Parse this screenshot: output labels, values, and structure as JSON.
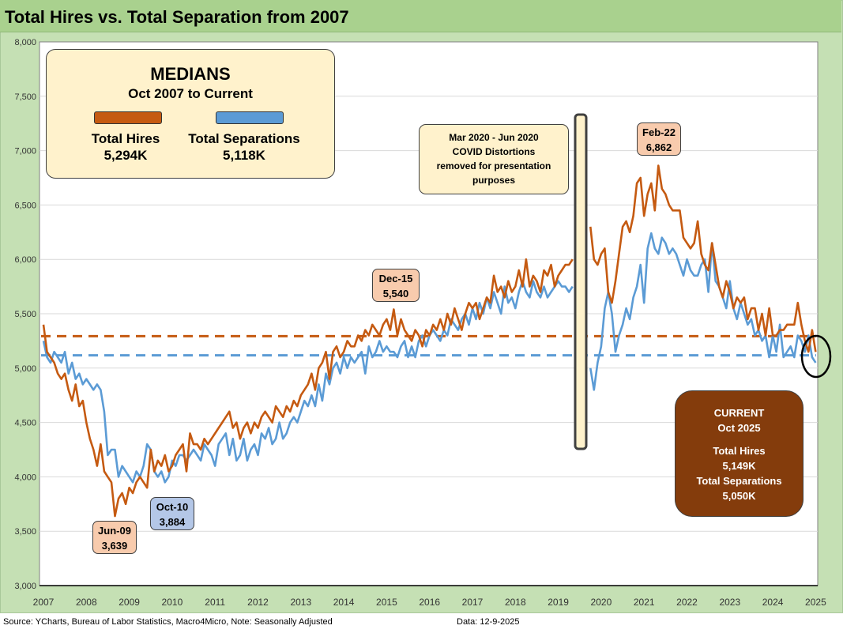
{
  "title": "Total Hires vs. Total Separation from 2007",
  "footer": {
    "source": "Source: YCharts, Bureau of Labor Statistics, Macro4Micro, Note: Seasonally Adjusted",
    "date": "Data: 12-9-2025"
  },
  "medians_box": {
    "heading": "MEDIANS",
    "period": "Oct 2007 to Current",
    "hires_label": "Total Hires",
    "hires_value": "5,294K",
    "seps_label": "Total Separations",
    "seps_value": "5,118K"
  },
  "covid_note": {
    "line1": "Mar 2020  - Jun 2020",
    "line2": "COVID Distortions",
    "line3": "removed for presentation",
    "line4": "purposes"
  },
  "callouts": {
    "jun09": {
      "date": "Jun-09",
      "value": "3,639"
    },
    "oct10": {
      "date": "Oct-10",
      "value": "3,884"
    },
    "dec15": {
      "date": "Dec-15",
      "value": "5,540"
    },
    "feb22": {
      "date": "Feb-22",
      "value": "6,862"
    }
  },
  "current_box": {
    "heading": "CURRENT",
    "period": "Oct 2025",
    "hires_label": "Total Hires",
    "hires_value": "5,149K",
    "seps_label": "Total Separations",
    "seps_value": "5,050K"
  },
  "colors": {
    "hires": "#c55a11",
    "separations": "#5b9bd5"
  },
  "chart_data": {
    "type": "line",
    "title": "Total Hires vs. Total Separation from 2007",
    "start_month": "2007-10",
    "frequency": "monthly",
    "ylim": [
      3000,
      8000
    ],
    "yticks": [
      3000,
      3500,
      4000,
      4500,
      5000,
      5500,
      6000,
      6500,
      7000,
      7500,
      8000
    ],
    "ytick_labels": [
      "3,000",
      "3,500",
      "4,000",
      "4,500",
      "5,000",
      "5,500",
      "6,000",
      "6,500",
      "7,000",
      "7,500",
      "8,000"
    ],
    "xtick_labels": [
      "2007",
      "2008",
      "2009",
      "2010",
      "2011",
      "2012",
      "2013",
      "2014",
      "2015",
      "2016",
      "2017",
      "2018",
      "2019",
      "2020",
      "2021",
      "2022",
      "2023",
      "2024",
      "2025"
    ],
    "grid": true,
    "series": [
      {
        "name": "Total Hires",
        "units": "K",
        "median": 5294,
        "values": [
          5400,
          5150,
          5100,
          5050,
          4950,
          4900,
          4950,
          4800,
          4700,
          4850,
          4650,
          4700,
          4500,
          4350,
          4250,
          4100,
          4300,
          4050,
          4000,
          3950,
          3639,
          3800,
          3850,
          3750,
          3900,
          3850,
          3950,
          4000,
          3950,
          3900,
          4250,
          4050,
          4150,
          4100,
          4200,
          4050,
          4100,
          4200,
          4250,
          4300,
          4050,
          4400,
          4300,
          4300,
          4250,
          4350,
          4300,
          4350,
          4400,
          4450,
          4500,
          4550,
          4600,
          4450,
          4500,
          4350,
          4450,
          4500,
          4400,
          4500,
          4450,
          4550,
          4600,
          4550,
          4500,
          4650,
          4600,
          4550,
          4650,
          4600,
          4700,
          4650,
          4750,
          4800,
          4850,
          4950,
          4800,
          5000,
          5050,
          5150,
          4900,
          5150,
          5200,
          5100,
          5150,
          5250,
          5200,
          5200,
          5300,
          5250,
          5350,
          5300,
          5400,
          5350,
          5300,
          5400,
          5450,
          5350,
          5540,
          5300,
          5450,
          5350,
          5300,
          5250,
          5350,
          5300,
          5200,
          5350,
          5300,
          5400,
          5350,
          5450,
          5350,
          5500,
          5400,
          5550,
          5450,
          5350,
          5500,
          5600,
          5550,
          5600,
          5450,
          5550,
          5650,
          5600,
          5850,
          5700,
          5750,
          5650,
          5800,
          5700,
          5750,
          5900,
          5750,
          6000,
          5750,
          5850,
          5800,
          5700,
          5900,
          5850,
          5950,
          5750,
          5850,
          5900,
          5950,
          5950,
          6000,
          null,
          null,
          null,
          null,
          6300,
          6000,
          5950,
          6050,
          6100,
          5700,
          5600,
          5800,
          6050,
          6300,
          6350,
          6250,
          6400,
          6700,
          6750,
          6400,
          6600,
          6700,
          6450,
          6862,
          6650,
          6600,
          6500,
          6450,
          6450,
          6450,
          6200,
          6150,
          6100,
          6150,
          6350,
          6050,
          5950,
          5900,
          6150,
          5950,
          5750,
          5650,
          5800,
          5700,
          5550,
          5650,
          5600,
          5650,
          5450,
          5550,
          5550,
          5350,
          5500,
          5300,
          5550,
          5300,
          5300,
          5350,
          5350,
          5400,
          5400,
          5400,
          5600,
          5400,
          5250,
          5150,
          5350,
          5149
        ]
      },
      {
        "name": "Total Separations",
        "units": "K",
        "median": 5118,
        "values": [
          5250,
          5100,
          5050,
          5150,
          5100,
          5050,
          5150,
          4950,
          5050,
          4900,
          4950,
          4850,
          4900,
          4850,
          4800,
          4850,
          4800,
          4600,
          4200,
          4250,
          4250,
          4000,
          4100,
          4050,
          4000,
          3950,
          4050,
          4000,
          4100,
          4300,
          4250,
          4050,
          4000,
          4050,
          3950,
          4000,
          4150,
          4100,
          4200,
          4200,
          4150,
          4200,
          4250,
          4200,
          4150,
          4300,
          4250,
          4200,
          4100,
          4300,
          4350,
          4400,
          4200,
          4350,
          4150,
          4200,
          4350,
          4150,
          4250,
          4300,
          4200,
          4400,
          4350,
          4450,
          4300,
          4350,
          4500,
          4350,
          4400,
          4500,
          4550,
          4500,
          4600,
          4700,
          4650,
          4750,
          4650,
          4850,
          4700,
          4950,
          4850,
          5000,
          5050,
          4950,
          5100,
          5000,
          5100,
          5050,
          5100,
          5150,
          4950,
          5200,
          5100,
          5150,
          5250,
          5150,
          5200,
          5150,
          5150,
          5100,
          5200,
          5250,
          5100,
          5200,
          5100,
          5250,
          5300,
          5200,
          5300,
          5350,
          5300,
          5250,
          5350,
          5300,
          5450,
          5400,
          5350,
          5450,
          5500,
          5400,
          5550,
          5450,
          5600,
          5500,
          5650,
          5550,
          5700,
          5600,
          5500,
          5750,
          5600,
          5650,
          5550,
          5700,
          5800,
          5700,
          5650,
          5800,
          5700,
          5650,
          5750,
          5650,
          5700,
          5750,
          5800,
          5750,
          5750,
          5700,
          5750,
          null,
          null,
          null,
          null,
          5000,
          4800,
          5050,
          5200,
          5550,
          5700,
          5500,
          5150,
          5300,
          5400,
          5550,
          5450,
          5650,
          5750,
          5950,
          5600,
          6100,
          6240,
          6100,
          6050,
          6200,
          6150,
          6050,
          6100,
          6050,
          5950,
          5850,
          6000,
          5900,
          5850,
          5850,
          5950,
          6000,
          5700,
          6150,
          5800,
          5750,
          5650,
          5550,
          5800,
          5550,
          5450,
          5600,
          5500,
          5400,
          5450,
          5300,
          5350,
          5250,
          5300,
          5100,
          5300,
          5150,
          5400,
          5100,
          5150,
          5200,
          5100,
          5300,
          5250,
          5150,
          5300,
          5100,
          5050
        ]
      }
    ]
  }
}
